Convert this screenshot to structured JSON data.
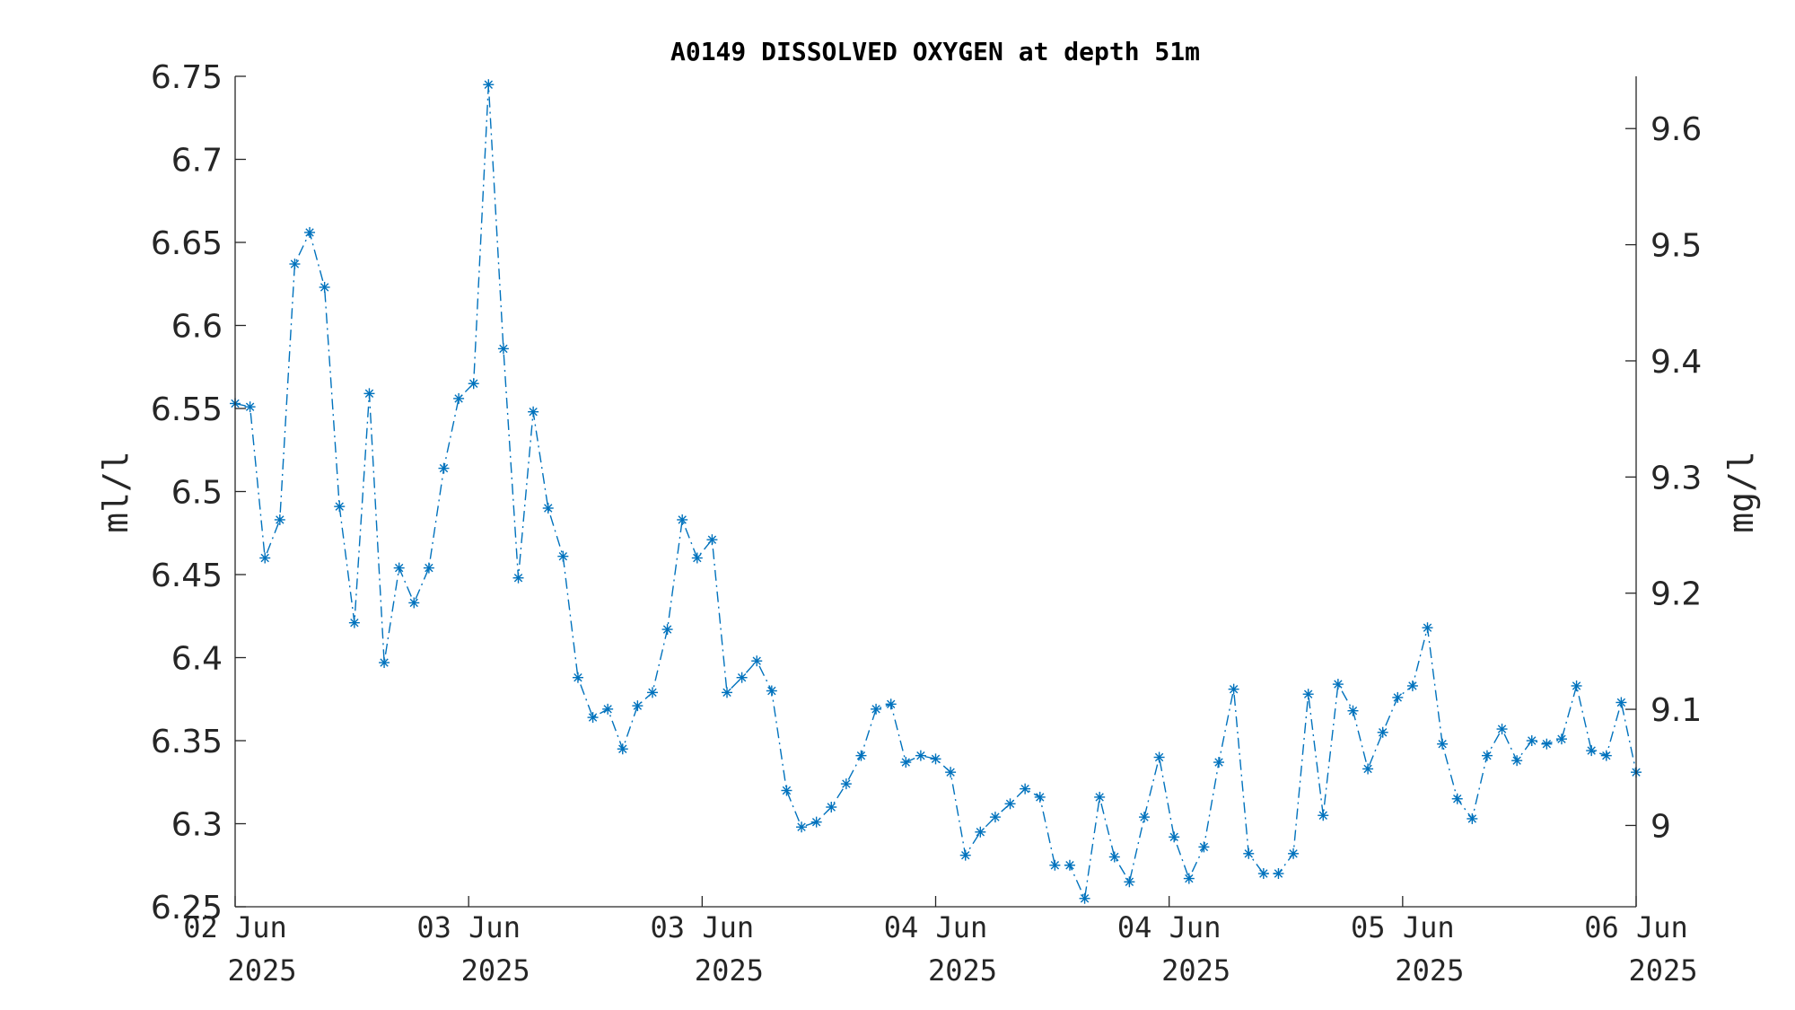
{
  "chart_data": {
    "type": "line",
    "title": "A0149 DISSOLVED OXYGEN at depth 51m",
    "ylabel": "ml/l",
    "ylabel_right": "mg/l",
    "ylim": [
      6.25,
      6.75
    ],
    "ylim_right": [
      8.93,
      9.645
    ],
    "yticks": [
      "6.25",
      "6.3",
      "6.35",
      "6.4",
      "6.45",
      "6.5",
      "6.55",
      "6.6",
      "6.65",
      "6.7",
      "6.75"
    ],
    "yticks_right": [
      "9",
      "9.1",
      "9.2",
      "9.3",
      "9.4",
      "9.5",
      "9.6"
    ],
    "xticks": [
      {
        "day": "02 Jun",
        "year": "2025"
      },
      {
        "day": "03 Jun",
        "year": "2025"
      },
      {
        "day": "03 Jun",
        "year": "2025"
      },
      {
        "day": "04 Jun",
        "year": "2025"
      },
      {
        "day": "04 Jun",
        "year": "2025"
      },
      {
        "day": "05 Jun",
        "year": "2025"
      },
      {
        "day": "06 Jun",
        "year": "2025"
      }
    ],
    "marker": "*",
    "line_style": "dash-dot",
    "color": "#0072BD",
    "grid": false,
    "series": [
      {
        "values": [
          6.553,
          6.551,
          6.46,
          6.483,
          6.637,
          6.656,
          6.623,
          6.491,
          6.421,
          6.559,
          6.397,
          6.454,
          6.433,
          6.454,
          6.514,
          6.556,
          6.565,
          6.745,
          6.586,
          6.448,
          6.548,
          6.49,
          6.461,
          6.388,
          6.364,
          6.369,
          6.345,
          6.371,
          6.379,
          6.417,
          6.483,
          6.46,
          6.471,
          6.379,
          6.388,
          6.398,
          6.38,
          6.32,
          6.298,
          6.301,
          6.31,
          6.324,
          6.341,
          6.369,
          6.372,
          6.337,
          6.341,
          6.339,
          6.331,
          6.281,
          6.295,
          6.304,
          6.312,
          6.321,
          6.316,
          6.275,
          6.275,
          6.255,
          6.316,
          6.28,
          6.265,
          6.304,
          6.34,
          6.292,
          6.267,
          6.286,
          6.337,
          6.381,
          6.282,
          6.27,
          6.27,
          6.282,
          6.378,
          6.305,
          6.384,
          6.368,
          6.333,
          6.355,
          6.376,
          6.383,
          6.418,
          6.348,
          6.315,
          6.303,
          6.341,
          6.357,
          6.338,
          6.35,
          6.348,
          6.351,
          6.383,
          6.344,
          6.341,
          6.373,
          6.331
        ]
      }
    ]
  }
}
